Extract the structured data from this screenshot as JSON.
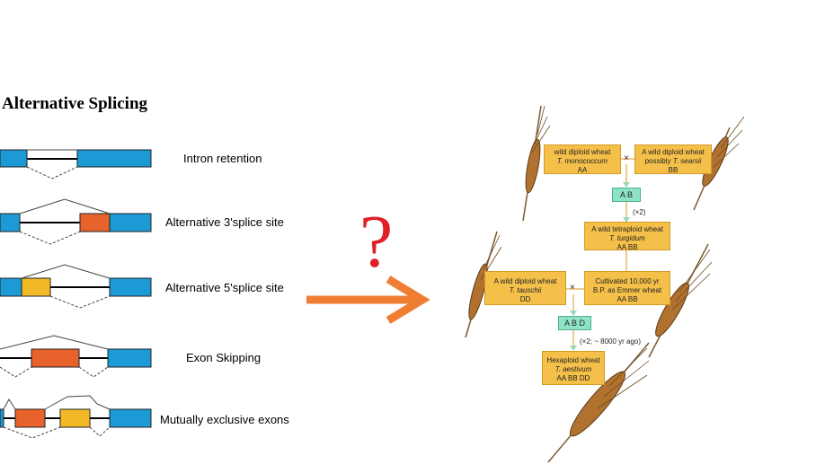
{
  "title": "Alternative Splicing",
  "splicing_types": [
    {
      "label": "Intron retention"
    },
    {
      "label": "Alternative 3'splice site"
    },
    {
      "label": "Alternative 5'splice site"
    },
    {
      "label": "Exon Skipping"
    },
    {
      "label": "Mutually exclusive exons"
    }
  ],
  "question_mark": "?",
  "colors": {
    "constitutive_exon": "#1b9ad6",
    "alt_exon_orange": "#e8632b",
    "alt_exon_yellow": "#f2b927",
    "arrow": "#ef7e33",
    "question": "#e01f26",
    "wheat_box": "#f5c04a",
    "genome_box": "#8ee3c4"
  },
  "wheat": {
    "monococcum": {
      "line1": "wild diploid wheat",
      "species": "T. monococcum",
      "genome": "AA"
    },
    "searsii": {
      "line1": "A wild diploid wheat",
      "prefix": "possibly ",
      "species": "T. searsii",
      "genome": "BB"
    },
    "cross_symbol": "×",
    "ab_genome": "A B",
    "doubling_1": "(×2)",
    "turgidum": {
      "line1": "A wild tetraploid wheat",
      "species": "T. turgidum",
      "genome": "AA BB"
    },
    "tauschii": {
      "line1": "A wild diploid wheat",
      "species": "T. tauschii",
      "genome": "DD"
    },
    "emmer": {
      "line1": "Cultivated 10,000 yr",
      "line2": "B.P. as Emmer wheat",
      "genome": "AA BB"
    },
    "abd_genome": "A B D",
    "doubling_2": "(×2; ~ 8000 yr ago)",
    "aestivum": {
      "line1": "Hexaploid wheat",
      "species": "T. aestivum",
      "genome": "AA BB DD"
    }
  }
}
